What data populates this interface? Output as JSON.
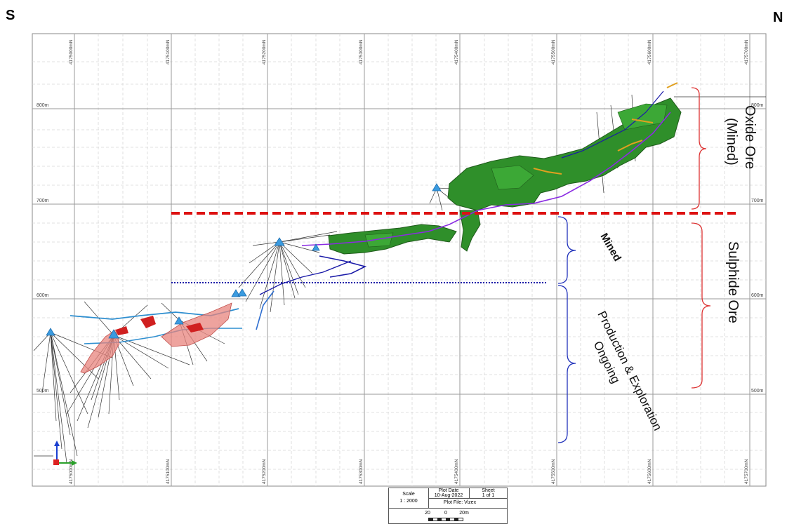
{
  "directions": {
    "south": "S",
    "north": "N"
  },
  "northings": [
    "4175000mN",
    "4175100mN",
    "4175200mN",
    "4175300mN",
    "4175400mN",
    "4175500mN",
    "4175600mN",
    "4175700mN"
  ],
  "elevations": {
    "left": [
      "800m",
      "700m",
      "600m",
      "500m"
    ],
    "right": [
      "800m",
      "700m",
      "600m",
      "500m"
    ]
  },
  "annotations": {
    "oxide": "Oxide Ore\n(Mined)",
    "sulphide": "Sulphide Ore",
    "mined": "Mined",
    "production": "Production & Exploration\nOngoing"
  },
  "title_block": {
    "scale_label": "Scale",
    "scale_value": "1 : 2000",
    "plot_date_label": "Plot Date",
    "plot_date_value": "10-Aug-2022",
    "sheet_label": "Sheet",
    "sheet_value": "1 of 1",
    "plot_file": "Plot File: Vizex",
    "scalebar": [
      "20",
      "0",
      "20m"
    ]
  },
  "colors": {
    "oxide_body": "#2f8f2a",
    "sulphide_body": "#e8847d",
    "drill_trace": "#333333",
    "collar": "#3a9be0",
    "limit_line": "#dd1111",
    "mined_line": "#1a1aa8",
    "oxide_brace": "#dd3333",
    "mined_brace": "#2233bb"
  }
}
